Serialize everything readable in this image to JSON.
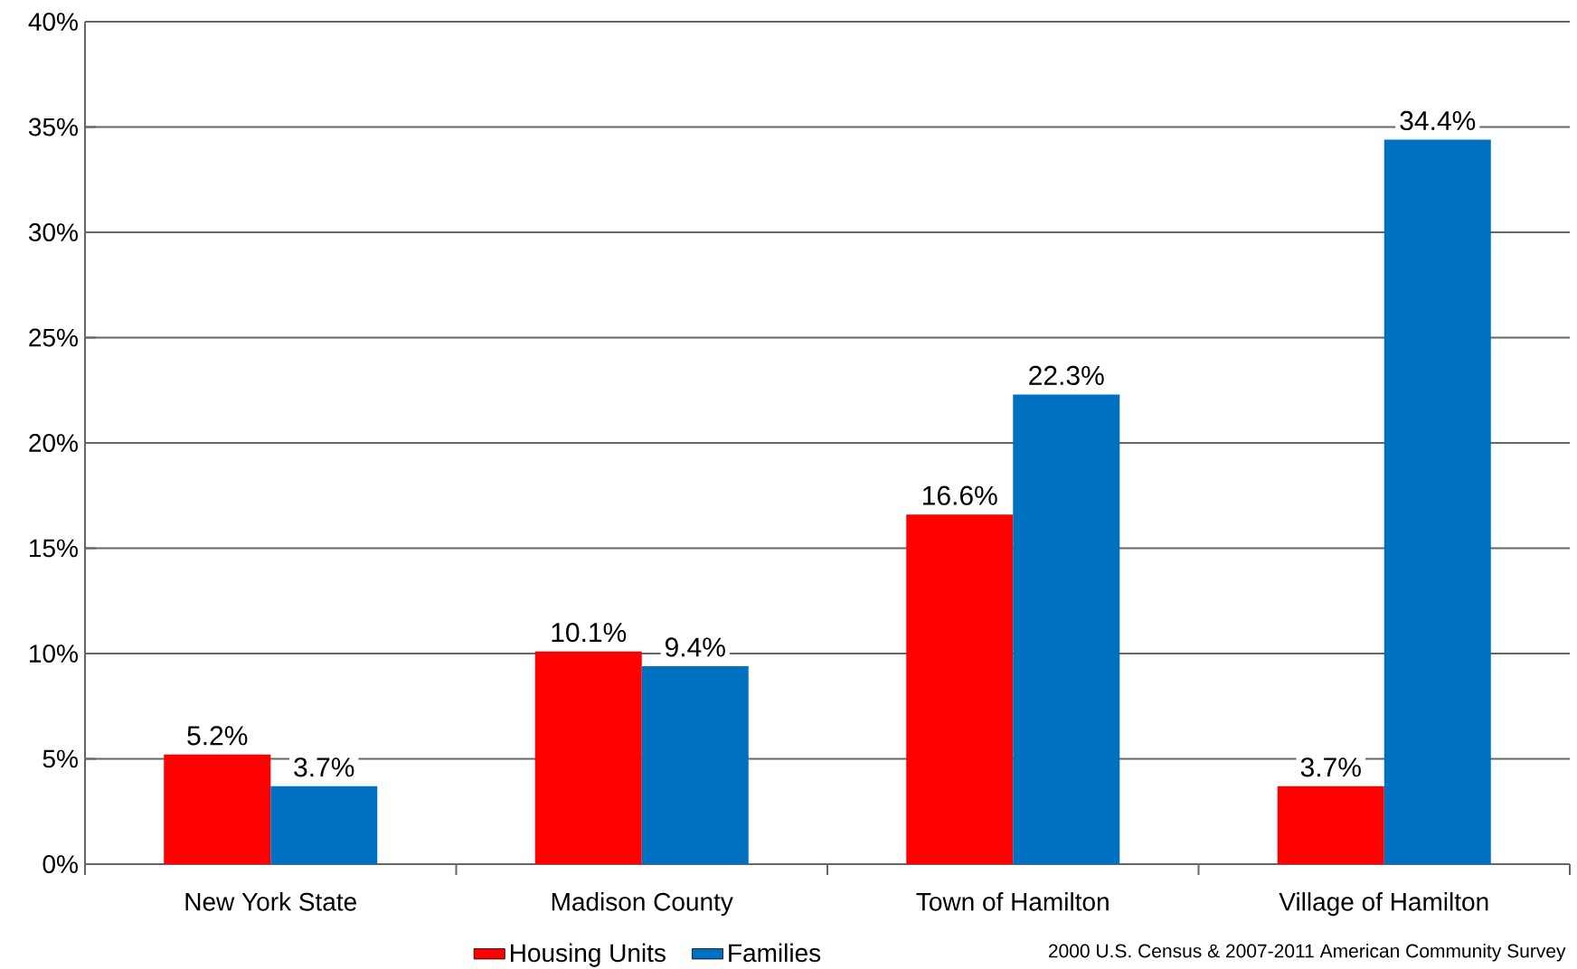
{
  "chart_data": {
    "type": "bar",
    "categories": [
      "New York State",
      "Madison County",
      "Town of Hamilton",
      "Village of Hamilton"
    ],
    "series": [
      {
        "name": "Housing Units",
        "color": "#ff0000",
        "values": [
          5.2,
          10.1,
          16.6,
          3.7
        ],
        "value_labels": [
          "5.2%",
          "10.1%",
          "16.6%",
          "3.7%"
        ]
      },
      {
        "name": "Families",
        "color": "#0070c0",
        "values": [
          3.7,
          9.4,
          22.3,
          34.4
        ],
        "value_labels": [
          "3.7%",
          "9.4%",
          "22.3%",
          "34.4%"
        ]
      }
    ],
    "ylim": [
      0,
      40
    ],
    "yticks": [
      {
        "value": 0,
        "label": "0%"
      },
      {
        "value": 5,
        "label": "5%"
      },
      {
        "value": 10,
        "label": "10%"
      },
      {
        "value": 15,
        "label": "15%"
      },
      {
        "value": 20,
        "label": "20%"
      },
      {
        "value": 25,
        "label": "25%"
      },
      {
        "value": 30,
        "label": "30%"
      },
      {
        "value": 35,
        "label": "35%"
      },
      {
        "value": 40,
        "label": "40%"
      }
    ],
    "grid": "y",
    "legend": "bottom",
    "annotations": [
      "2000 U.S. Census & 2007-2011 American Community Survey"
    ]
  }
}
